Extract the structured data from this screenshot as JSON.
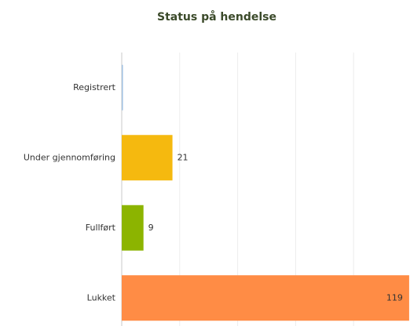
{
  "chart_data": {
    "type": "hbar",
    "title": "Status på hendelse",
    "categories": [
      "Registrert",
      "Under gjennomføring",
      "Fullført",
      "Lukket"
    ],
    "values": [
      0,
      21,
      9,
      119
    ],
    "value_labels": [
      null,
      "21",
      "9",
      "119"
    ],
    "colors": [
      "#9fbfe0",
      "#f5b90f",
      "#8cb400",
      "#ff8c45"
    ],
    "xlim": [
      0,
      120
    ],
    "xticks": [
      0,
      24,
      48,
      72,
      96,
      120
    ],
    "grid": true
  }
}
